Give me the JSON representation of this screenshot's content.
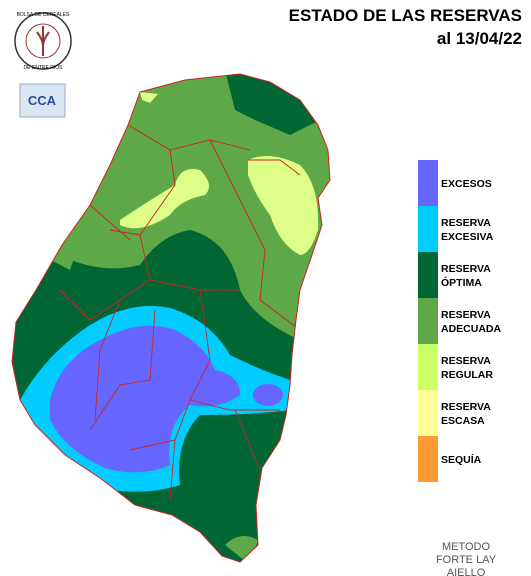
{
  "header": {
    "title": "ESTADO DE LAS RESERVAS",
    "date": "al 13/04/22"
  },
  "logo": {
    "top": "BOLSA DE CEREALES",
    "bottom": "DE ENTRE RIOS",
    "badge": "CCA"
  },
  "legend": [
    {
      "lines": [
        "EXCESOS"
      ],
      "color": "#6666ff"
    },
    {
      "lines": [
        "RESERVA",
        "EXCESIVA"
      ],
      "color": "#00ccff"
    },
    {
      "lines": [
        "RESERVA",
        "ÓPTIMA"
      ],
      "color": "#006633"
    },
    {
      "lines": [
        "RESERVA",
        "ADECUADA"
      ],
      "color": "#5fa847"
    },
    {
      "lines": [
        "RESERVA",
        "REGULAR"
      ],
      "color": "#ccff66"
    },
    {
      "lines": [
        "RESERVA",
        "ESCASA"
      ],
      "color": "#ffff99"
    },
    {
      "lines": [
        "SEQUÍA"
      ],
      "color": "#ff9933"
    }
  ],
  "method": [
    "METODO",
    "FORTE LAY",
    "AIELLO"
  ]
}
